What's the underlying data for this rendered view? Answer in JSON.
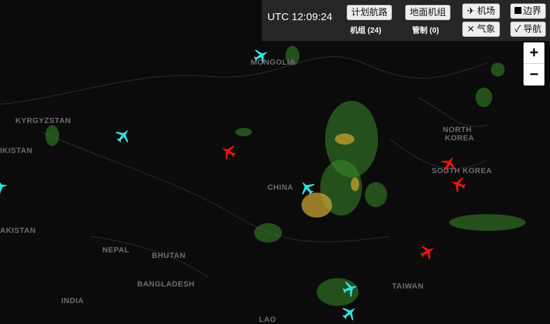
{
  "header": {
    "utc_time": "UTC 12:09:24",
    "planned_route": "计划航路",
    "ground_crew": "地面机组",
    "crew_count": "机组 (24)",
    "control_count": "管制 (0)",
    "airports": "✈ 机场",
    "borders": "边界",
    "weather": "✕ 气象",
    "navigation": "✓ 导航"
  },
  "zoom": {
    "in": "+",
    "out": "−"
  },
  "map_labels": [
    {
      "name": "MONGOLIA"
    },
    {
      "name": "KYRGYZSTAN"
    },
    {
      "name": "IKISTAN"
    },
    {
      "name": "AKISTAN"
    },
    {
      "name": "NEPAL"
    },
    {
      "name": "BHUTAN"
    },
    {
      "name": "BANGLADESH"
    },
    {
      "name": "INDIA"
    },
    {
      "name": "CHINA"
    },
    {
      "name": "NORTH"
    },
    {
      "name": "KOREA"
    },
    {
      "name": "SOUTH KOREA"
    },
    {
      "name": "TAIWAN"
    },
    {
      "name": "LAO"
    }
  ],
  "colors": {
    "airborne": "#33e0e0",
    "alert": "#ee1111",
    "radar_light": "#3a8a2a",
    "radar_heavy": "#c9a030"
  }
}
